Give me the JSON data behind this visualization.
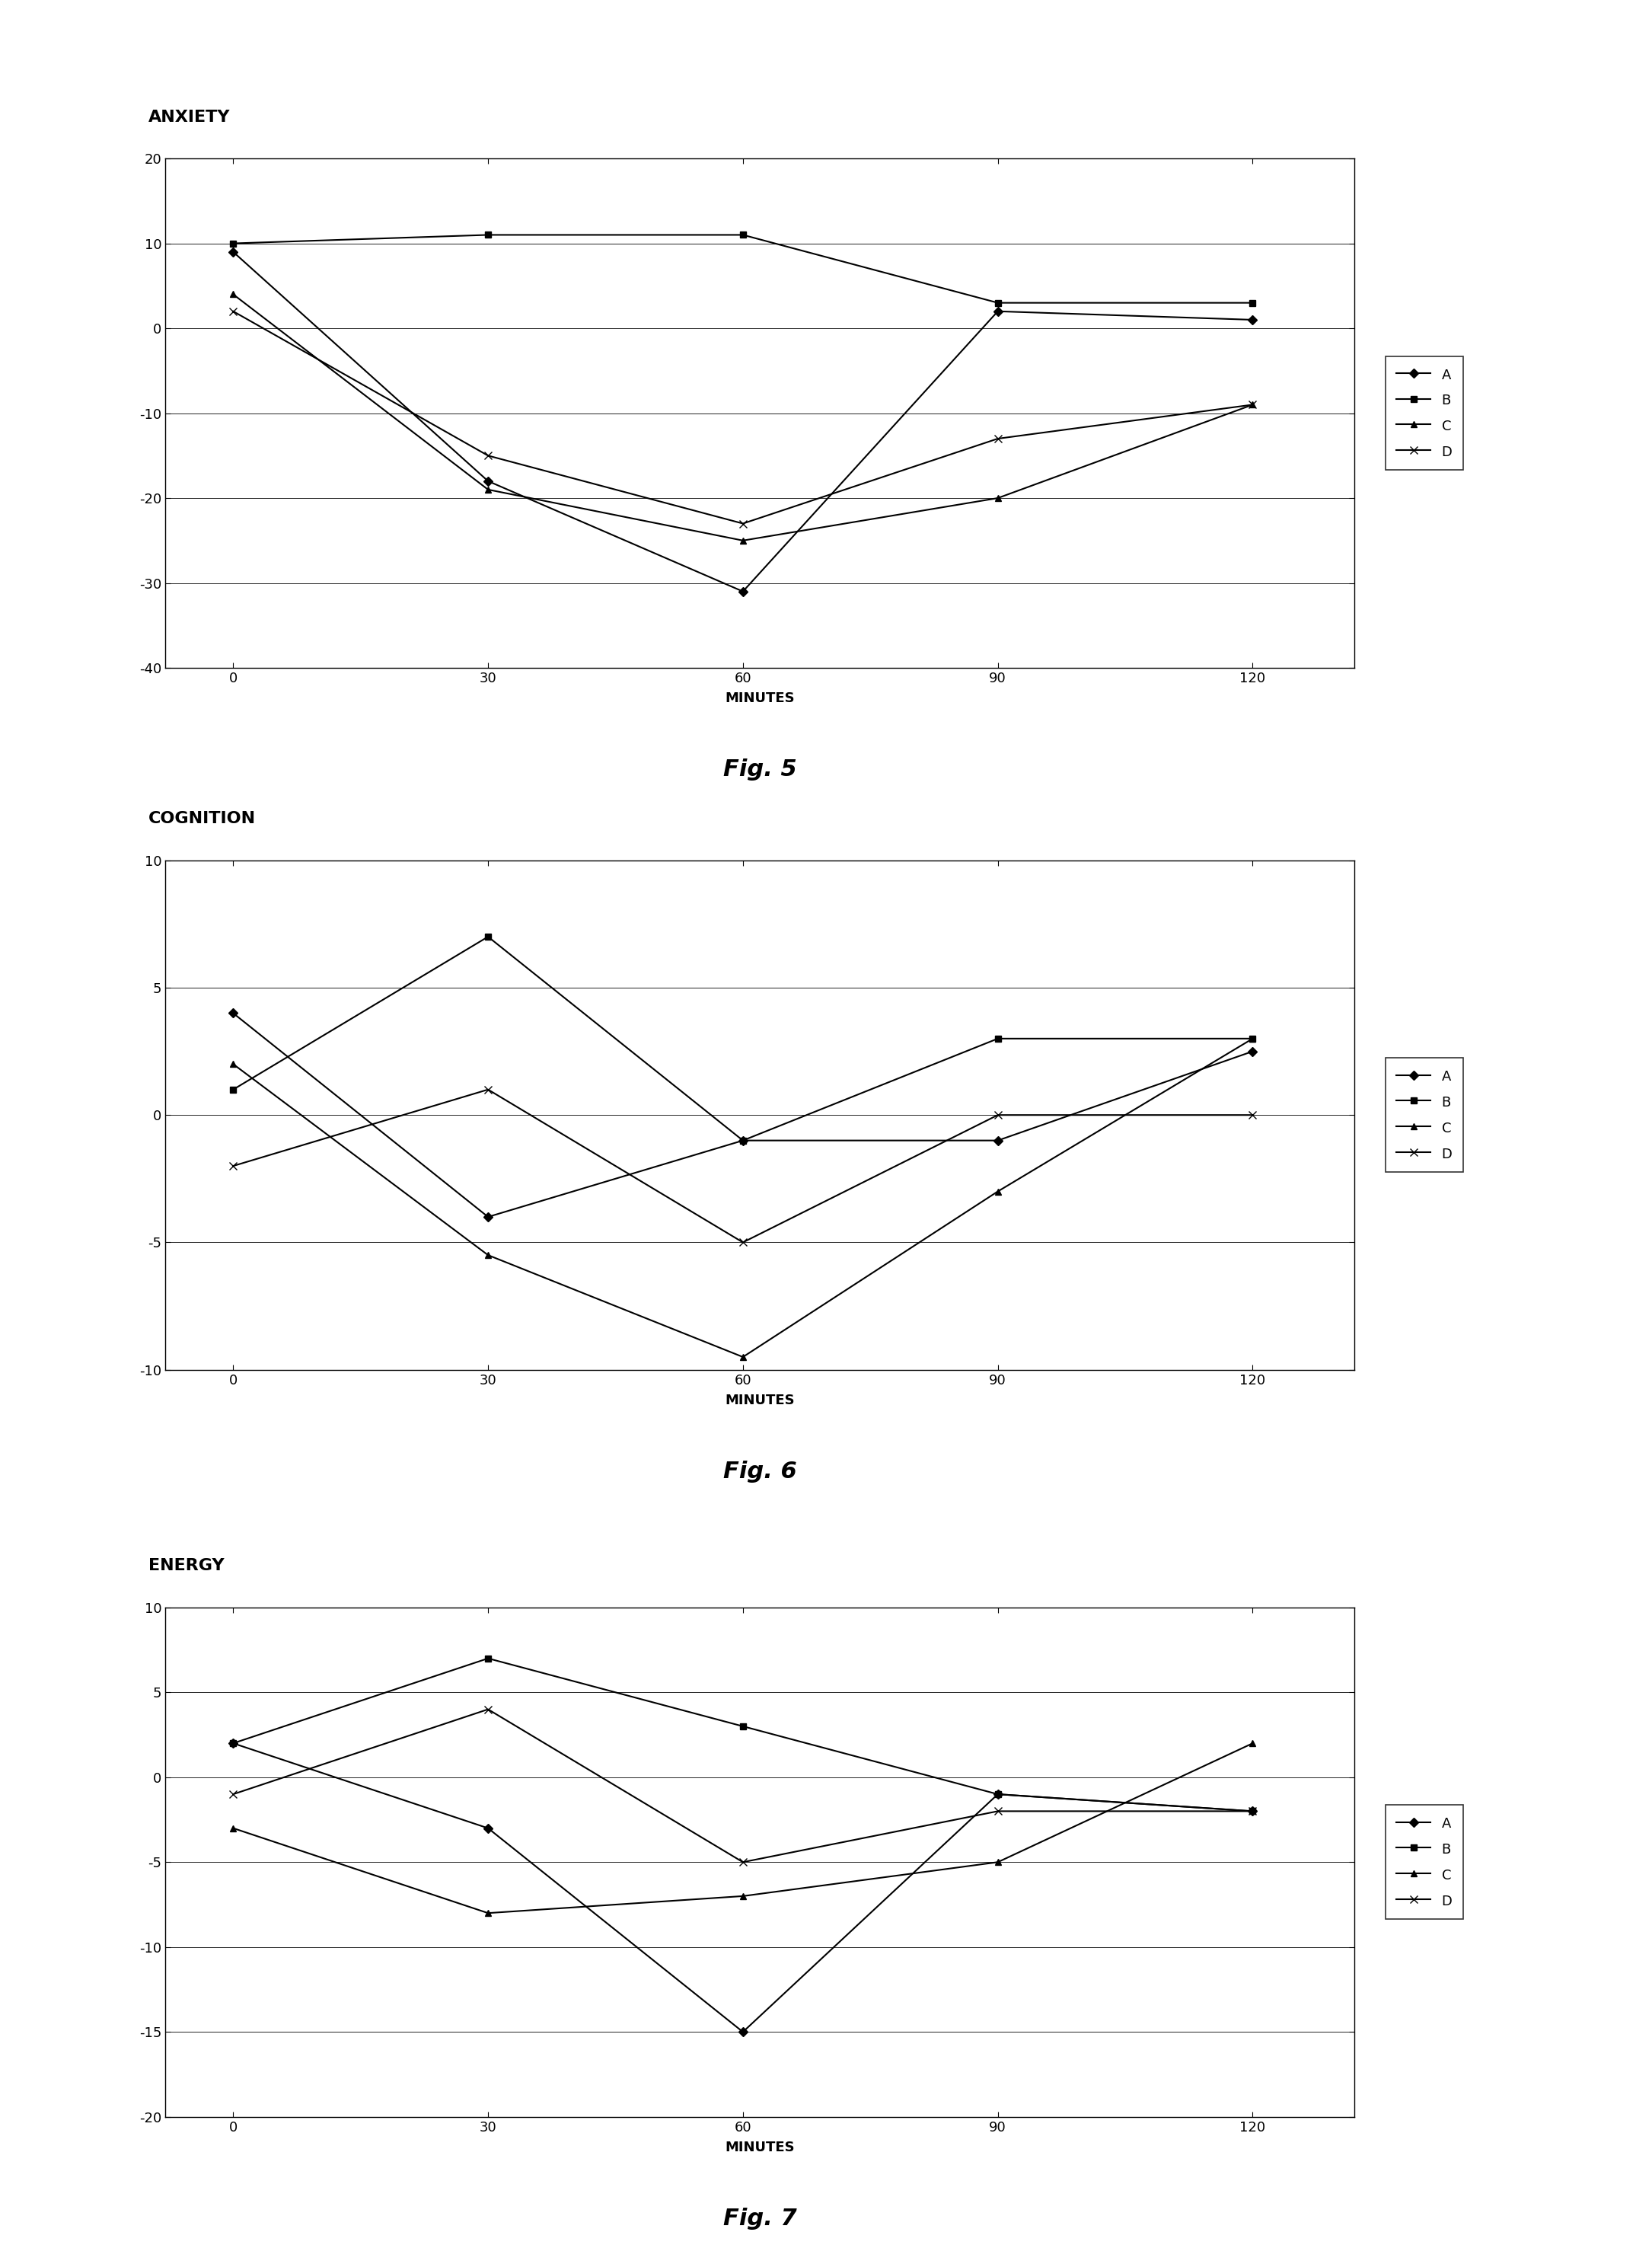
{
  "x": [
    0,
    30,
    60,
    90,
    120
  ],
  "fig5": {
    "title": "ANXIETY",
    "figname": "Fig. 5",
    "ylim": [
      -40,
      20
    ],
    "yticks": [
      -40,
      -30,
      -20,
      -10,
      0,
      10,
      20
    ],
    "series": {
      "A": [
        9,
        -18,
        -31,
        2,
        1
      ],
      "B": [
        10,
        11,
        11,
        3,
        3
      ],
      "C": [
        4,
        -19,
        -25,
        -20,
        -9
      ],
      "D": [
        2,
        -15,
        -23,
        -13,
        -9
      ]
    }
  },
  "fig6": {
    "title": "COGNITION",
    "figname": "Fig. 6",
    "ylim": [
      -10,
      10
    ],
    "yticks": [
      -10,
      -5,
      0,
      5,
      10
    ],
    "series": {
      "A": [
        4,
        -4,
        -1,
        -1,
        2.5
      ],
      "B": [
        1,
        7,
        -1,
        3,
        3
      ],
      "C": [
        2,
        -5.5,
        -9.5,
        -3,
        3
      ],
      "D": [
        -2,
        1,
        -5,
        0,
        0
      ]
    }
  },
  "fig7": {
    "title": "ENERGY",
    "figname": "Fig. 7",
    "ylim": [
      -20,
      10
    ],
    "yticks": [
      -20,
      -15,
      -10,
      -5,
      0,
      5,
      10
    ],
    "series": {
      "A": [
        2,
        -3,
        -15,
        -1,
        -2
      ],
      "B": [
        2,
        7,
        3,
        -1,
        -2
      ],
      "C": [
        -3,
        -8,
        -7,
        -5,
        2
      ],
      "D": [
        -1,
        4,
        -5,
        -2,
        -2
      ]
    }
  },
  "xlabel": "MINUTES",
  "xticks": [
    0,
    30,
    60,
    90,
    120
  ],
  "series_styles": {
    "A": {
      "marker": "D",
      "color": "#000000",
      "linestyle": "-",
      "markersize": 6
    },
    "B": {
      "marker": "s",
      "color": "#000000",
      "linestyle": "-",
      "markersize": 6
    },
    "C": {
      "marker": "^",
      "color": "#000000",
      "linestyle": "-",
      "markersize": 6
    },
    "D": {
      "marker": "x",
      "color": "#000000",
      "linestyle": "-",
      "markersize": 7
    }
  },
  "background_color": "#ffffff",
  "title_fontsize": 16,
  "axis_fontsize": 13,
  "xlabel_fontsize": 13,
  "figname_fontsize": 22,
  "legend_fontsize": 13
}
